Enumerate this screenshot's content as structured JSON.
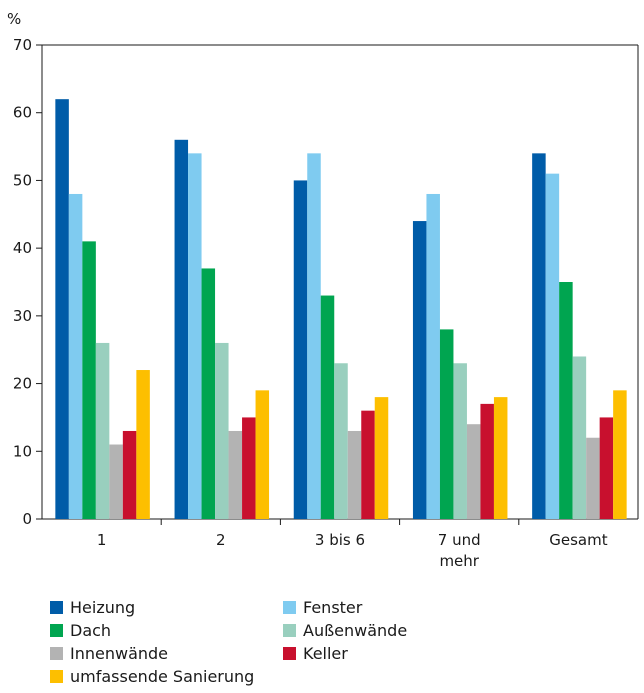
{
  "chart_data": {
    "type": "bar",
    "unit_label": "%",
    "categories": [
      "1",
      "2",
      "3 bis 6",
      "7 und\nmehr",
      "Gesamt"
    ],
    "ylim": [
      0,
      70
    ],
    "yticks": [
      0,
      10,
      20,
      30,
      40,
      50,
      60,
      70
    ],
    "grid": false,
    "legend_position": "bottom",
    "series": [
      {
        "name": "Heizung",
        "color": "#005ca8",
        "values": [
          62,
          56,
          50,
          44,
          54
        ]
      },
      {
        "name": "Fenster",
        "color": "#7fcbf0",
        "values": [
          48,
          54,
          54,
          48,
          51
        ]
      },
      {
        "name": "Dach",
        "color": "#00a550",
        "values": [
          41,
          37,
          33,
          28,
          35
        ]
      },
      {
        "name": "Außenwände",
        "color": "#99cfbe",
        "values": [
          26,
          26,
          23,
          23,
          24
        ]
      },
      {
        "name": "Innenwände",
        "color": "#b3b3b3",
        "values": [
          11,
          13,
          13,
          14,
          12
        ]
      },
      {
        "name": "Keller",
        "color": "#c8102e",
        "values": [
          13,
          15,
          16,
          17,
          15
        ]
      },
      {
        "name": "umfassende Sanierung",
        "color": "#fdbf00",
        "values": [
          22,
          19,
          18,
          18,
          19
        ]
      }
    ]
  }
}
